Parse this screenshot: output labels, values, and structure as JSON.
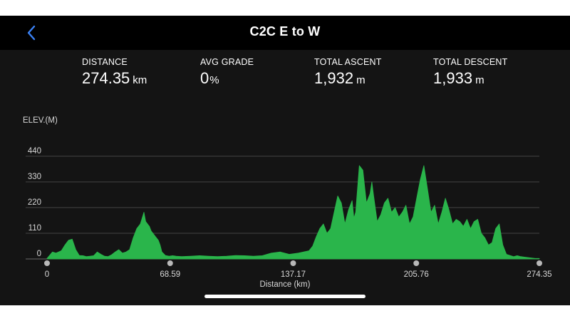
{
  "header": {
    "title": "C2C E to W",
    "back_icon": "chevron-left-icon",
    "back_color": "#3b82f6"
  },
  "stats": [
    {
      "label": "DISTANCE",
      "value": "274.35",
      "unit": "km"
    },
    {
      "label": "AVG GRADE",
      "value": "0",
      "unit": "%"
    },
    {
      "label": "TOTAL ASCENT",
      "value": "1,932",
      "unit": "m"
    },
    {
      "label": "TOTAL DESCENT",
      "value": "1,933",
      "unit": "m"
    }
  ],
  "chart_data": {
    "type": "area",
    "title": "",
    "ylabel": "ELEV.(M)",
    "xlabel": "Distance (km)",
    "xlim": [
      0,
      274.35
    ],
    "ylim": [
      0,
      440
    ],
    "yticks": [
      "0",
      "110",
      "220",
      "330",
      "440"
    ],
    "xticks": [
      "0",
      "68.59",
      "137.17",
      "205.76",
      "274.35"
    ],
    "grid": true,
    "color": "#2ab54b",
    "series": [
      {
        "x": [
          0,
          3,
          5,
          8,
          10,
          12,
          14,
          16,
          18,
          20,
          22,
          24,
          26,
          28,
          30,
          32,
          34,
          36,
          38,
          40,
          42,
          44,
          46,
          48,
          50,
          52,
          54,
          55,
          57,
          58,
          60,
          61,
          62,
          63,
          64,
          66,
          68,
          70,
          72,
          75,
          80,
          85,
          90,
          95,
          100,
          105,
          110,
          115,
          120,
          125,
          130,
          135,
          140,
          143,
          146,
          148,
          150,
          152,
          154,
          156,
          158,
          160,
          162,
          164,
          166,
          168,
          170,
          171,
          172,
          174,
          176,
          178,
          180,
          181,
          182,
          184,
          186,
          188,
          190,
          192,
          194,
          196,
          198,
          200,
          202,
          204,
          206,
          208,
          210,
          212,
          214,
          216,
          218,
          220,
          222,
          224,
          226,
          228,
          230,
          232,
          234,
          236,
          238,
          240,
          242,
          244,
          246,
          248,
          250,
          252,
          254,
          256,
          258,
          260,
          262,
          264,
          266,
          268,
          270,
          272,
          274.35
        ],
        "y": [
          2,
          30,
          25,
          35,
          60,
          80,
          85,
          40,
          15,
          14,
          10,
          12,
          14,
          30,
          20,
          12,
          10,
          18,
          30,
          40,
          25,
          30,
          40,
          90,
          130,
          150,
          200,
          160,
          140,
          120,
          100,
          90,
          80,
          60,
          30,
          15,
          12,
          14,
          12,
          10,
          12,
          14,
          12,
          10,
          12,
          15,
          14,
          12,
          14,
          25,
          30,
          20,
          25,
          30,
          35,
          55,
          95,
          130,
          150,
          110,
          130,
          200,
          270,
          240,
          150,
          210,
          250,
          175,
          200,
          400,
          380,
          240,
          280,
          330,
          270,
          160,
          190,
          240,
          260,
          200,
          220,
          180,
          200,
          230,
          150,
          180,
          260,
          340,
          400,
          300,
          200,
          230,
          150,
          200,
          260,
          210,
          150,
          170,
          160,
          140,
          170,
          130,
          160,
          170,
          110,
          90,
          60,
          70,
          130,
          150,
          60,
          20,
          15,
          10,
          14,
          10,
          8,
          6,
          4,
          2,
          2
        ]
      }
    ]
  }
}
